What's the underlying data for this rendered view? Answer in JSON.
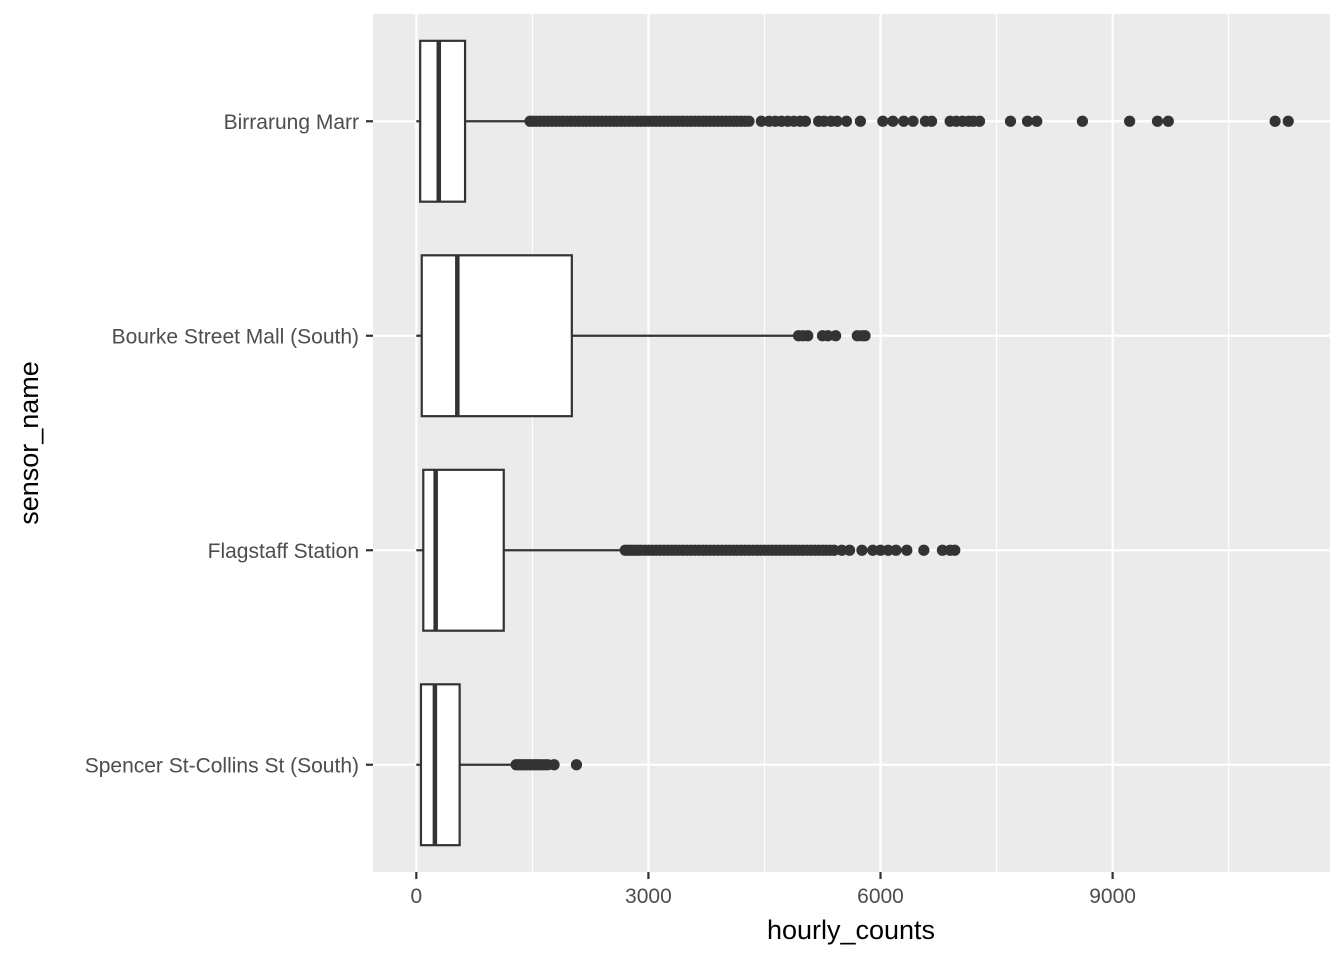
{
  "chart_data": {
    "type": "boxplot",
    "orientation": "horizontal",
    "title": "",
    "xlabel": "hourly_counts",
    "ylabel": "sensor_name",
    "xlim": [
      -560,
      11810
    ],
    "x_ticks": [
      0,
      3000,
      6000,
      9000
    ],
    "x_tick_labels": [
      "0",
      "3000",
      "6000",
      "9000"
    ],
    "grid": true,
    "legend": "none",
    "colors": {
      "panel_background": "#ebebeb",
      "grid": "#ffffff",
      "box_fill": "#ffffff",
      "box_stroke": "#333333",
      "outlier": "#333333"
    },
    "categories": [
      "Spencer St-Collins St (South)",
      "Flagstaff Station",
      "Bourke Street Mall (South)",
      "Birrarung Marr"
    ],
    "boxes": [
      {
        "name": "Spencer St-Collins St (South)",
        "min": 0,
        "q1": 60,
        "median": 240,
        "q3": 560,
        "max": 1280,
        "outliers": [
          1290,
          1320,
          1350,
          1380,
          1410,
          1440,
          1470,
          1500,
          1530,
          1560,
          1590,
          1620,
          1660,
          1700,
          1780,
          2070
        ]
      },
      {
        "name": "Flagstaff Station",
        "min": 0,
        "q1": 90,
        "median": 250,
        "q3": 1130,
        "max": 2650,
        "outliers": [
          2700,
          2740,
          2780,
          2820,
          2860,
          2900,
          2950,
          3000,
          3050,
          3100,
          3150,
          3200,
          3250,
          3300,
          3350,
          3400,
          3450,
          3500,
          3550,
          3600,
          3650,
          3700,
          3750,
          3800,
          3850,
          3900,
          3950,
          4000,
          4050,
          4100,
          4150,
          4200,
          4250,
          4300,
          4350,
          4400,
          4450,
          4500,
          4550,
          4600,
          4650,
          4700,
          4750,
          4800,
          4850,
          4900,
          4950,
          5000,
          5050,
          5100,
          5150,
          5200,
          5250,
          5300,
          5350,
          5400,
          5500,
          5600,
          5760,
          5900,
          6000,
          6100,
          6200,
          6340,
          6560,
          6800,
          6900,
          6960
        ]
      },
      {
        "name": "Bourke Street Mall (South)",
        "min": 0,
        "q1": 70,
        "median": 530,
        "q3": 2010,
        "max": 4900,
        "outliers": [
          4940,
          5000,
          5060,
          5250,
          5320,
          5420,
          5700,
          5760,
          5800
        ]
      },
      {
        "name": "Birrarung Marr",
        "min": 0,
        "q1": 50,
        "median": 290,
        "q3": 630,
        "max": 1450,
        "outliers": [
          1470,
          1510,
          1550,
          1600,
          1650,
          1700,
          1750,
          1800,
          1850,
          1900,
          1950,
          2000,
          2050,
          2100,
          2150,
          2200,
          2250,
          2300,
          2350,
          2400,
          2450,
          2500,
          2550,
          2600,
          2650,
          2700,
          2750,
          2800,
          2850,
          2900,
          2950,
          3000,
          3050,
          3100,
          3150,
          3200,
          3250,
          3300,
          3350,
          3400,
          3450,
          3500,
          3550,
          3600,
          3650,
          3700,
          3750,
          3800,
          3850,
          3900,
          3950,
          4000,
          4050,
          4100,
          4150,
          4200,
          4250,
          4300,
          4460,
          4560,
          4640,
          4720,
          4800,
          4880,
          4960,
          5030,
          5200,
          5270,
          5360,
          5440,
          5560,
          5740,
          6030,
          6160,
          6300,
          6420,
          6580,
          6660,
          6900,
          6980,
          7060,
          7140,
          7200,
          7280,
          7680,
          7900,
          8020,
          8610,
          9220,
          9580,
          9720,
          11100,
          11270
        ]
      }
    ]
  }
}
